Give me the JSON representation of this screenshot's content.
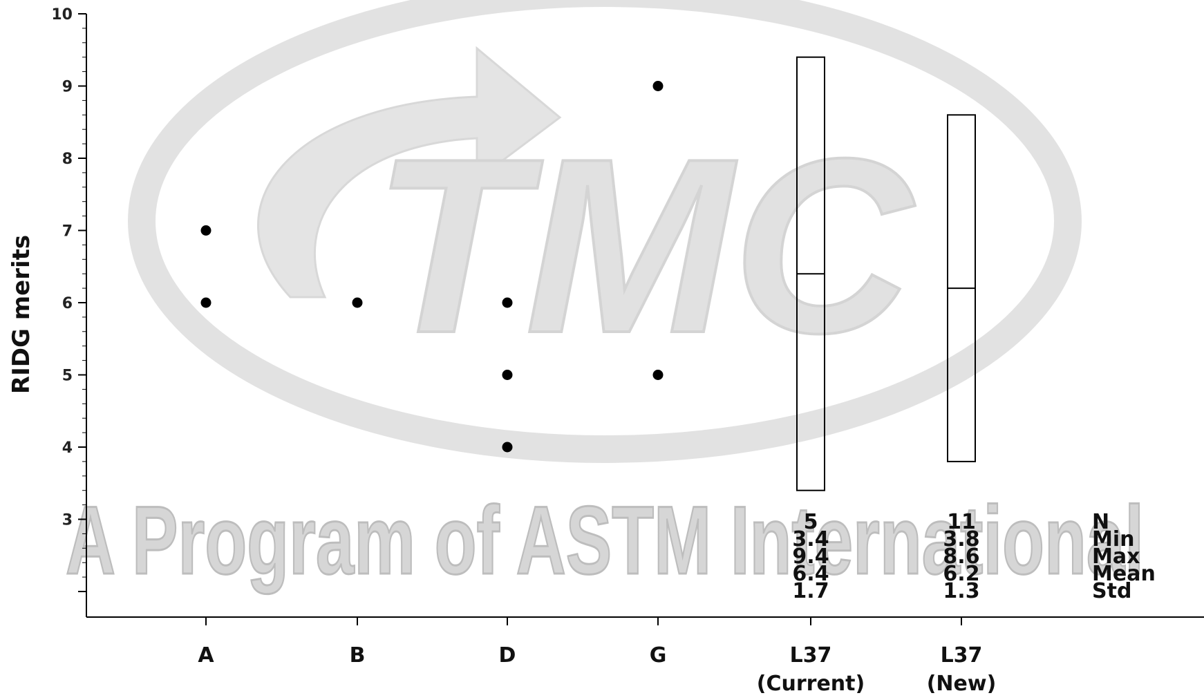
{
  "watermark": {
    "logo_text": "TMC",
    "caption": "A Program of ASTM International"
  },
  "chart_data": {
    "type": "scatter",
    "ylabel": "RIDG merits",
    "xlabel": "",
    "title": "",
    "ylim": [
      2,
      10
    ],
    "yticks": [
      3,
      4,
      5,
      6,
      7,
      8,
      9,
      10
    ],
    "categories": [
      {
        "label": "A",
        "sublabel": ""
      },
      {
        "label": "B",
        "sublabel": ""
      },
      {
        "label": "D",
        "sublabel": ""
      },
      {
        "label": "G",
        "sublabel": ""
      },
      {
        "label": "L37",
        "sublabel": "(Current)"
      },
      {
        "label": "L37",
        "sublabel": "(New)"
      }
    ],
    "points": [
      {
        "category": "A",
        "y": 7
      },
      {
        "category": "A",
        "y": 6
      },
      {
        "category": "B",
        "y": 6
      },
      {
        "category": "D",
        "y": 6
      },
      {
        "category": "D",
        "y": 5
      },
      {
        "category": "D",
        "y": 4
      },
      {
        "category": "G",
        "y": 9
      },
      {
        "category": "G",
        "y": 5
      }
    ],
    "boxes": [
      {
        "label": "L37 (Current)",
        "min": 3.4,
        "max": 9.4,
        "mean": 6.4
      },
      {
        "label": "L37 (New)",
        "min": 3.8,
        "max": 8.6,
        "mean": 6.2
      }
    ],
    "stats": {
      "row_labels": [
        "N",
        "Min",
        "Max",
        "Mean",
        "Std"
      ],
      "columns": [
        {
          "label": "L37 (Current)",
          "values": [
            "5",
            "3.4",
            "9.4",
            "6.4",
            "1.7"
          ]
        },
        {
          "label": "L37 (New)",
          "values": [
            "11",
            "3.8",
            "8.6",
            "6.2",
            "1.3"
          ]
        }
      ]
    }
  }
}
